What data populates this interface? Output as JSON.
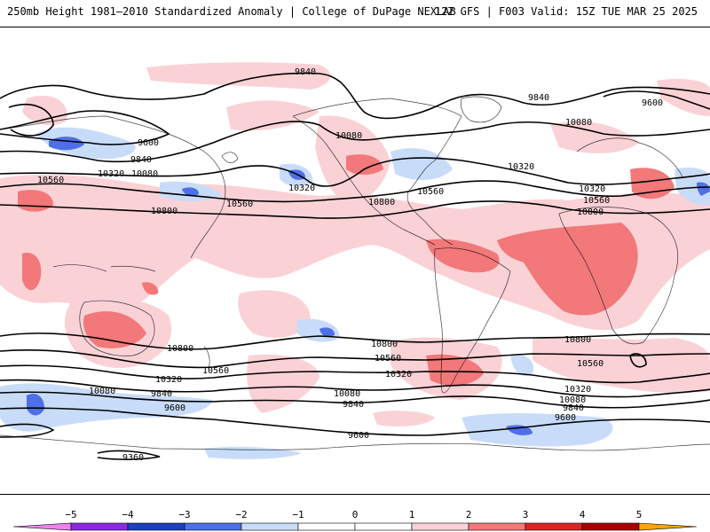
{
  "header": {
    "title_left": "250mb Height 1981–2010 Standardized Anomaly | College of DuPage NEXLAB",
    "title_right": "12Z GFS | F003 Valid: 15Z TUE MAR 25 2025"
  },
  "colors": {
    "neg5": "#ee82ee",
    "neg4": "#8a2be2",
    "neg3": "#1f3fbf",
    "neg2": "#4f6fe8",
    "neg1": "#c8dcfa",
    "zero": "#ffffff",
    "pos1": "#fad2d6",
    "pos2": "#f2787a",
    "pos3": "#dc2424",
    "pos4": "#aa0000",
    "pos5": "#ffa500"
  },
  "colorbar": {
    "ticks": [
      "−5",
      "−4",
      "−3",
      "−2",
      "−1",
      "0",
      "1",
      "2",
      "3",
      "4",
      "5"
    ]
  },
  "contour_labels": [
    {
      "id": "9840-npac",
      "text": "9840"
    },
    {
      "id": "9840-natl",
      "text": "9840"
    },
    {
      "id": "9600-atl",
      "text": "9600"
    },
    {
      "id": "10080-natl",
      "text": "10080"
    },
    {
      "id": "9600-asia",
      "text": "9600"
    },
    {
      "id": "9840-asia",
      "text": "9840"
    },
    {
      "id": "10320-asia",
      "text": "10320"
    },
    {
      "id": "10080-asia",
      "text": "10080"
    },
    {
      "id": "10560-asia",
      "text": "10560"
    },
    {
      "id": "10560-pac",
      "text": "10560"
    },
    {
      "id": "10320-pac",
      "text": "10320"
    },
    {
      "id": "10800-asia",
      "text": "10800"
    },
    {
      "id": "10080-na",
      "text": "10080"
    },
    {
      "id": "10560-na",
      "text": "10560"
    },
    {
      "id": "10800-na",
      "text": "10800"
    },
    {
      "id": "10320-atl",
      "text": "10320"
    },
    {
      "id": "10320-eu",
      "text": "10320"
    },
    {
      "id": "10560-eu",
      "text": "10560"
    },
    {
      "id": "10800-eu",
      "text": "10800"
    },
    {
      "id": "10800-sio",
      "text": "10800"
    },
    {
      "id": "10560-sio",
      "text": "10560"
    },
    {
      "id": "10320-sio",
      "text": "10320"
    },
    {
      "id": "10080-sio",
      "text": "10080"
    },
    {
      "id": "9840-sio",
      "text": "9840"
    },
    {
      "id": "9600-sio",
      "text": "9600"
    },
    {
      "id": "10800-spac",
      "text": "10800"
    },
    {
      "id": "10560-spac",
      "text": "10560"
    },
    {
      "id": "10320-spac",
      "text": "10320"
    },
    {
      "id": "10080-spac",
      "text": "10080"
    },
    {
      "id": "9840-spac",
      "text": "9840"
    },
    {
      "id": "9600-so",
      "text": "9600"
    },
    {
      "id": "10800-satl",
      "text": "10800"
    },
    {
      "id": "10560-satl",
      "text": "10560"
    },
    {
      "id": "10320-satl",
      "text": "10320"
    },
    {
      "id": "10080-satl",
      "text": "10080"
    },
    {
      "id": "9840-satl",
      "text": "9840"
    },
    {
      "id": "9600-satl",
      "text": "9600"
    },
    {
      "id": "9360-so",
      "text": "9360"
    }
  ]
}
